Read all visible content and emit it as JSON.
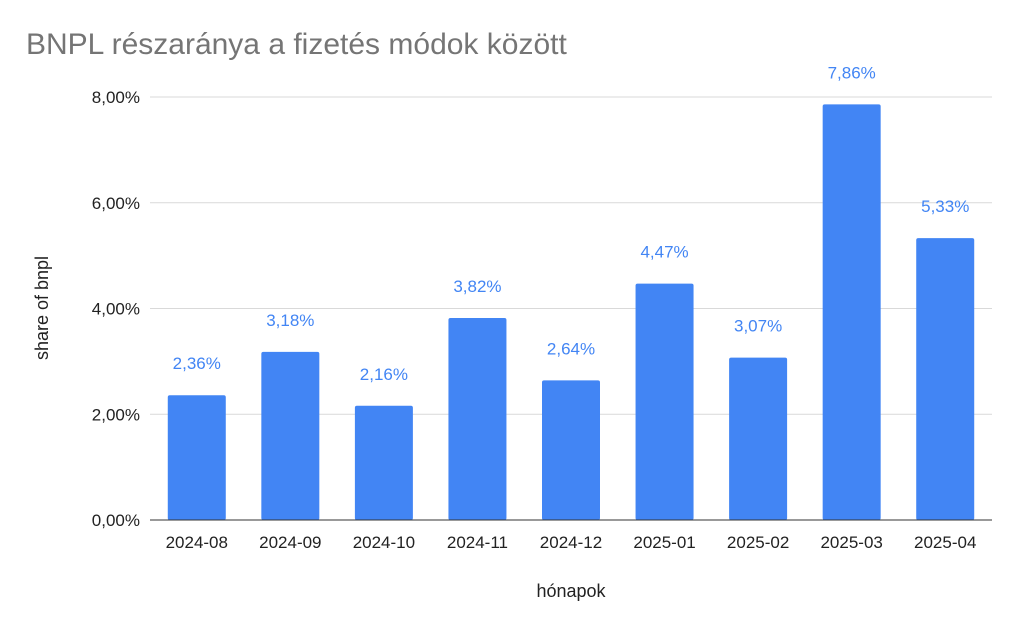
{
  "chart_data": {
    "type": "bar",
    "title": "BNPL részaránya a fizetés módok között",
    "xlabel": "hónapok",
    "ylabel": "share of bnpl",
    "categories": [
      "2024-08",
      "2024-09",
      "2024-10",
      "2024-11",
      "2024-12",
      "2025-01",
      "2025-02",
      "2025-03",
      "2025-04"
    ],
    "values": [
      2.36,
      3.18,
      2.16,
      3.82,
      2.64,
      4.47,
      3.07,
      7.86,
      5.33
    ],
    "data_labels": [
      "2,36%",
      "3,18%",
      "2,16%",
      "3,82%",
      "2,64%",
      "4,47%",
      "3,07%",
      "7,86%",
      "5,33%"
    ],
    "ylim": [
      0,
      8
    ],
    "yticks": [
      0,
      2,
      4,
      6,
      8
    ],
    "ytick_labels": [
      "0,00%",
      "2,00%",
      "4,00%",
      "6,00%",
      "8,00%"
    ],
    "grid": true,
    "legend": "none",
    "colors": {
      "bar": "#4285F4",
      "data_label": "#4285F4",
      "grid": "#d9d9d9",
      "axis": "#333333",
      "title": "#757575"
    }
  }
}
